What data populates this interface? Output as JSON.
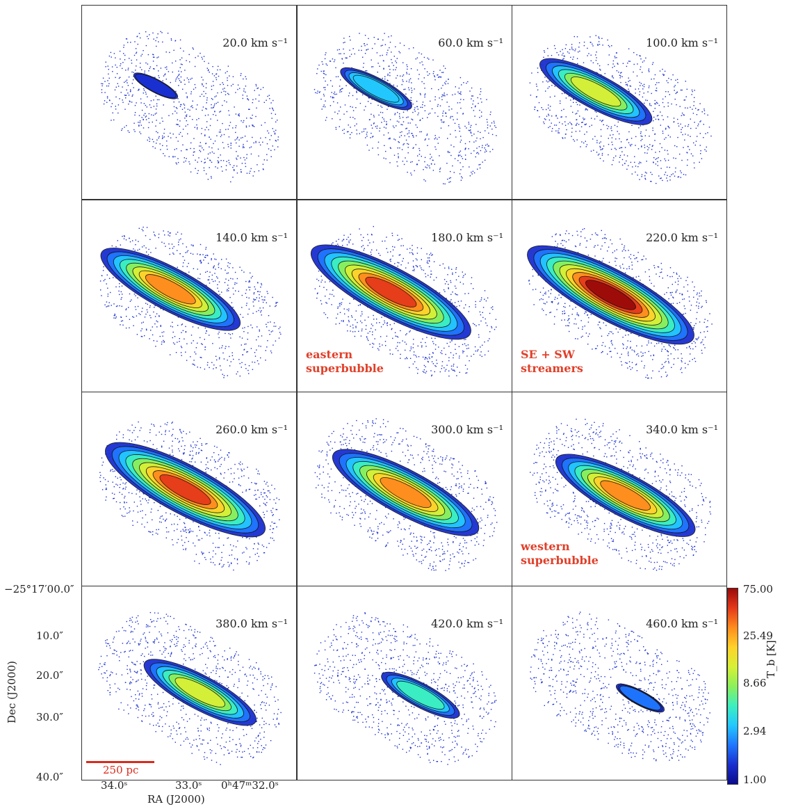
{
  "panels": [
    {
      "velocity": "20.0 km s⁻¹",
      "note": "",
      "emission": 0.05
    },
    {
      "velocity": "60.0 km s⁻¹",
      "note": "",
      "emission": 0.25
    },
    {
      "velocity": "100.0 km s⁻¹",
      "note": "",
      "emission": 0.55
    },
    {
      "velocity": "140.0 km s⁻¹",
      "note": "",
      "emission": 0.75
    },
    {
      "velocity": "180.0 km s⁻¹",
      "note": "eastern\nsuperbubble",
      "emission": 0.9
    },
    {
      "velocity": "220.0 km s⁻¹",
      "note": "SE + SW\nstreamers",
      "emission": 0.95
    },
    {
      "velocity": "260.0 km s⁻¹",
      "note": "",
      "emission": 0.9
    },
    {
      "velocity": "300.0 km s⁻¹",
      "note": "",
      "emission": 0.8
    },
    {
      "velocity": "340.0 km s⁻¹",
      "note": "western\nsuperbubble",
      "emission": 0.75
    },
    {
      "velocity": "380.0 km s⁻¹",
      "note": "",
      "emission": 0.55
    },
    {
      "velocity": "420.0 km s⁻¹",
      "note": "",
      "emission": 0.3
    },
    {
      "velocity": "460.0 km s⁻¹",
      "note": "",
      "emission": 0.08
    }
  ],
  "axes": {
    "ylabel": "Dec (J2000)",
    "xlabel": "RA (J2000)",
    "yticks": [
      "−25°17′00.0″",
      "10.0″",
      "20.0″",
      "30.0″",
      "40.0″"
    ],
    "xticks": [
      "34.0ˢ",
      "33.0ˢ",
      "0ʰ47ᵐ32.0ˢ"
    ]
  },
  "colorbar": {
    "label": "T_b [K]",
    "ticks": [
      "75.00",
      "25.49",
      "8.66",
      "2.94",
      "1.00"
    ]
  },
  "scalebar": {
    "label": "250 pc"
  },
  "colors": {
    "noise": "#1a2fd0",
    "annotation": "#e0402a"
  }
}
